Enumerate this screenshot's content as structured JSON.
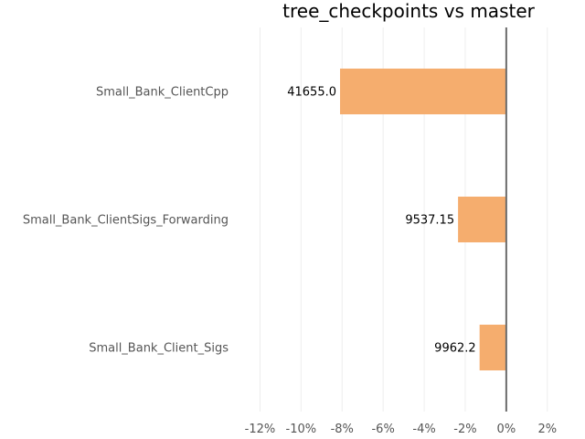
{
  "chart_data": {
    "type": "bar",
    "orientation": "horizontal",
    "title": "tree_checkpoints vs master",
    "xlabel": "",
    "ylabel": "",
    "categories": [
      "Small_Bank_ClientCpp",
      "Small_Bank_ClientSigs_Forwarding",
      "Small_Bank_Client_Sigs"
    ],
    "values": [
      -8.1,
      -2.35,
      -1.3
    ],
    "data_labels": [
      "41655.0",
      "9537.15",
      "9962.2"
    ],
    "xlim": [
      -13,
      2.5
    ],
    "x_ticks": [
      -12,
      -10,
      -8,
      -6,
      -4,
      -2,
      0,
      2
    ],
    "x_tick_labels": [
      "-12%",
      "-10%",
      "-8%",
      "-6%",
      "-4%",
      "-2%",
      "0%",
      "2%"
    ],
    "grid": true,
    "bar_color": "#f5ad6e",
    "zero_line_color": "#6b6b6b",
    "grid_color": "#eeeeee"
  }
}
